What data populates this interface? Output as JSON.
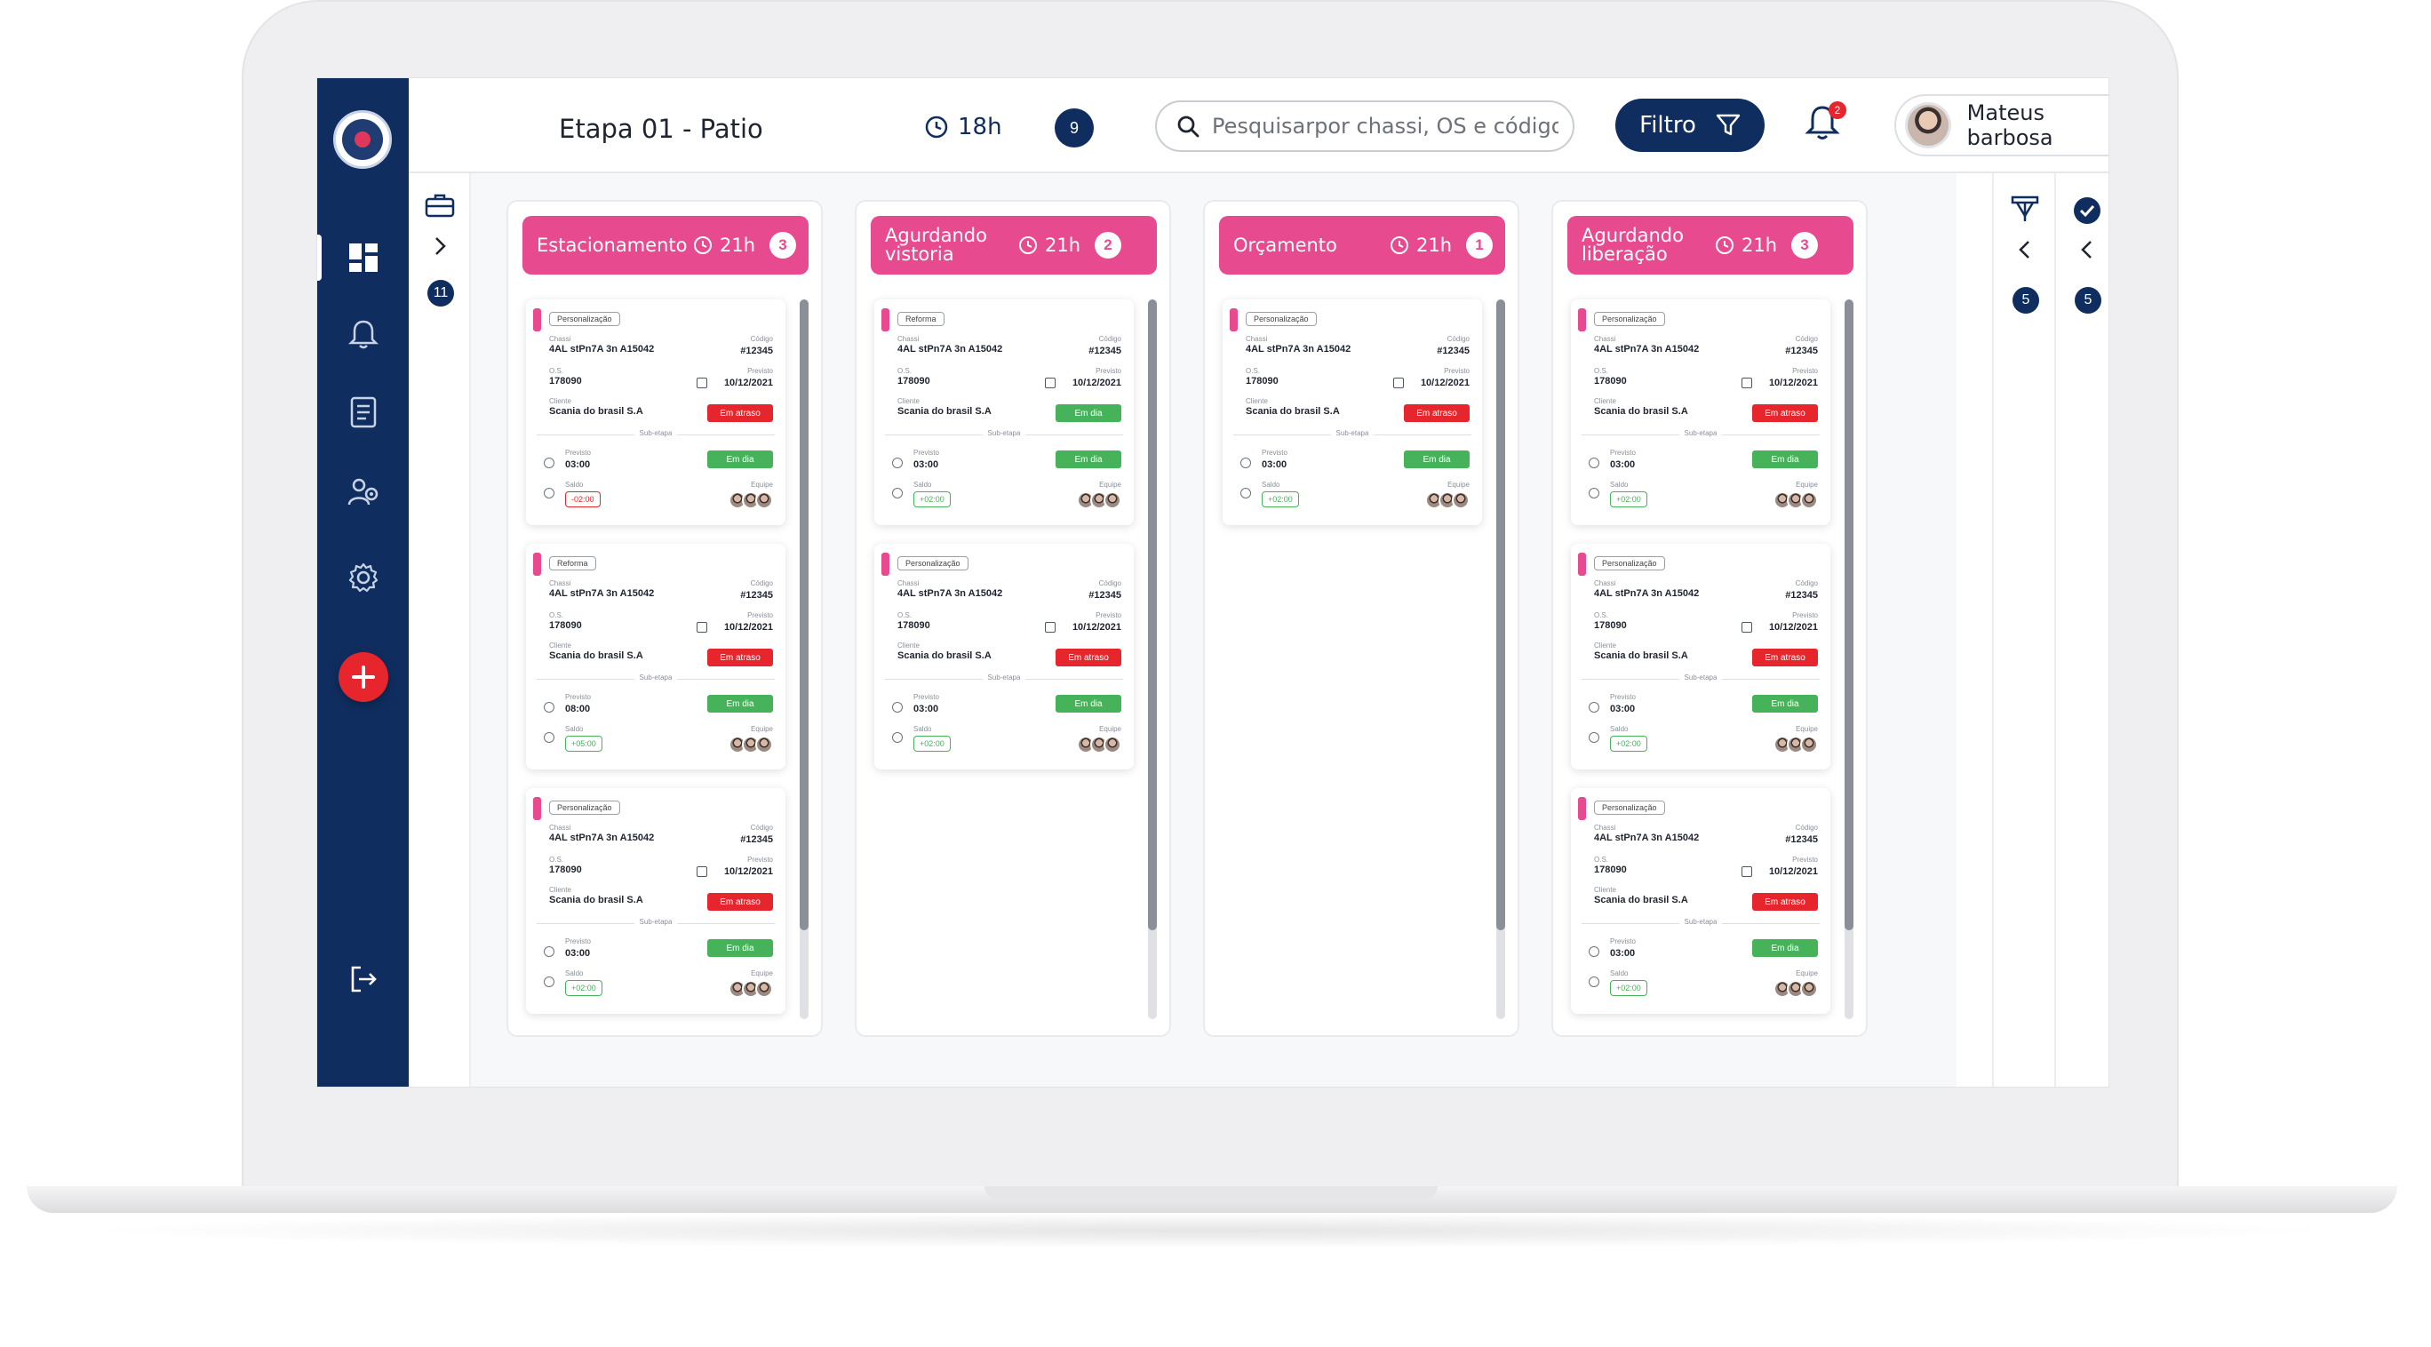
{
  "header": {
    "title": "Etapa 01 - Patio",
    "time": "18h",
    "count": "9",
    "search_placeholder": "Pesquisarpor chassi, OS e código...",
    "filter_label": "Filtro",
    "notification_count": "2",
    "user_name": "Mateus barbosa"
  },
  "sidebar": {
    "items": [
      {
        "icon": "dashboard-icon"
      },
      {
        "icon": "bell-icon"
      },
      {
        "icon": "report-icon"
      },
      {
        "icon": "team-icon"
      },
      {
        "icon": "gear-icon"
      }
    ],
    "add_icon": "plus-icon",
    "logout_icon": "logout-icon"
  },
  "tools": {
    "badge": "11"
  },
  "right_panels": [
    {
      "badge": "5"
    },
    {
      "badge": "5"
    }
  ],
  "card_labels": {
    "chassi": "Chassi",
    "codigo": "Código",
    "os": "O.S.",
    "previsto": "Previsto",
    "cliente": "Cliente",
    "sub_etapa": "Sub-etapa",
    "saldo": "Saldo",
    "equipe": "Equipe"
  },
  "columns": [
    {
      "title": "Estacionamento",
      "time": "21h",
      "count": "3",
      "cards": [
        {
          "tag": "Personalização",
          "chassi": "4AL stPn7A 3n A15042",
          "codigo": "#12345",
          "os": "178090",
          "date": "10/12/2021",
          "cliente": "Scania do brasil S.A",
          "status": "Em atraso",
          "sub_status": "Em dia",
          "previsto": "03:00",
          "saldo": "-02:00"
        },
        {
          "tag": "Reforma",
          "chassi": "4AL stPn7A 3n A15042",
          "codigo": "#12345",
          "os": "178090",
          "date": "10/12/2021",
          "cliente": "Scania do brasil S.A",
          "status": "Em atraso",
          "sub_status": "Em dia",
          "previsto": "08:00",
          "saldo": "+05:00"
        },
        {
          "tag": "Personalização",
          "chassi": "4AL stPn7A 3n A15042",
          "codigo": "#12345",
          "os": "178090",
          "date": "10/12/2021",
          "cliente": "Scania do brasil S.A",
          "status": "Em atraso",
          "sub_status": "Em dia",
          "previsto": "03:00",
          "saldo": "+02:00"
        }
      ]
    },
    {
      "title": "Agurdando vistoria",
      "time": "21h",
      "count": "2",
      "cards": [
        {
          "tag": "Reforma",
          "chassi": "4AL stPn7A 3n A15042",
          "codigo": "#12345",
          "os": "178090",
          "date": "10/12/2021",
          "cliente": "Scania do brasil S.A",
          "status": "Em dia",
          "sub_status": "Em dia",
          "previsto": "03:00",
          "saldo": "+02:00"
        },
        {
          "tag": "Personalização",
          "chassi": "4AL stPn7A 3n A15042",
          "codigo": "#12345",
          "os": "178090",
          "date": "10/12/2021",
          "cliente": "Scania do brasil S.A",
          "status": "Em atraso",
          "sub_status": "Em dia",
          "previsto": "03:00",
          "saldo": "+02:00"
        }
      ]
    },
    {
      "title": "Orçamento",
      "time": "21h",
      "count": "1",
      "cards": [
        {
          "tag": "Personalização",
          "chassi": "4AL stPn7A 3n A15042",
          "codigo": "#12345",
          "os": "178090",
          "date": "10/12/2021",
          "cliente": "Scania do brasil S.A",
          "status": "Em atraso",
          "sub_status": "Em dia",
          "previsto": "03:00",
          "saldo": "+02:00"
        }
      ]
    },
    {
      "title": "Agurdando liberação",
      "time": "21h",
      "count": "3",
      "cards": [
        {
          "tag": "Personalização",
          "chassi": "4AL stPn7A 3n A15042",
          "codigo": "#12345",
          "os": "178090",
          "date": "10/12/2021",
          "cliente": "Scania do brasil S.A",
          "status": "Em atraso",
          "sub_status": "Em dia",
          "previsto": "03:00",
          "saldo": "+02:00"
        },
        {
          "tag": "Personalização",
          "chassi": "4AL stPn7A 3n A15042",
          "codigo": "#12345",
          "os": "178090",
          "date": "10/12/2021",
          "cliente": "Scania do brasil S.A",
          "status": "Em atraso",
          "sub_status": "Em dia",
          "previsto": "03:00",
          "saldo": "+02:00"
        },
        {
          "tag": "Personalização",
          "chassi": "4AL stPn7A 3n A15042",
          "codigo": "#12345",
          "os": "178090",
          "date": "10/12/2021",
          "cliente": "Scania do brasil S.A",
          "status": "Em atraso",
          "sub_status": "Em dia",
          "previsto": "03:00",
          "saldo": "+02:00"
        }
      ]
    }
  ],
  "colors": {
    "navy": "#0f2d5e",
    "pink": "#e84a8f",
    "late": "#e6262c",
    "ok": "#46b35a"
  }
}
